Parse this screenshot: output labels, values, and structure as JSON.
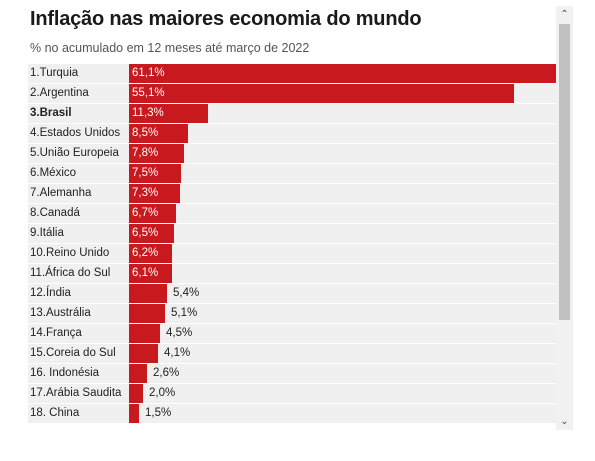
{
  "title": "Inflação nas maiores economia do mundo",
  "subtitle": "% no acumulado em 12 meses até março de 2022",
  "chart_data": {
    "type": "bar",
    "orientation": "horizontal",
    "bar_color": "#c8191e",
    "highlight_category": "3.Brasil",
    "categories": [
      "1.Turquia",
      "2.Argentina",
      "3.Brasil",
      "4.Estados Unidos",
      "5.União Europeia",
      "6.México",
      "7.Alemanha",
      "8.Canadá",
      "9.Itália",
      "10.Reino Unido",
      "11.África do Sul",
      "12.Índia",
      "13.Austrália",
      "14.França",
      "15.Coreia do Sul",
      "16. Indonésia",
      "17.Arábia Saudita",
      "18. China"
    ],
    "values": [
      61.1,
      55.1,
      11.3,
      8.5,
      7.8,
      7.5,
      7.3,
      6.7,
      6.5,
      6.2,
      6.1,
      5.4,
      5.1,
      4.5,
      4.1,
      2.6,
      2.0,
      1.5
    ],
    "value_labels": [
      "61,1%",
      "55,1%",
      "11,3%",
      "8,5%",
      "7,8%",
      "7,5%",
      "7,3%",
      "6,7%",
      "6,5%",
      "6,2%",
      "6,1%",
      "5,4%",
      "5,1%",
      "4,5%",
      "4,1%",
      "2,6%",
      "2,0%",
      "1,5%"
    ],
    "xlim": [
      0,
      61.1
    ]
  },
  "scrollbar": {
    "up_icon": "chevron-up-icon",
    "down_icon": "chevron-down-icon"
  }
}
